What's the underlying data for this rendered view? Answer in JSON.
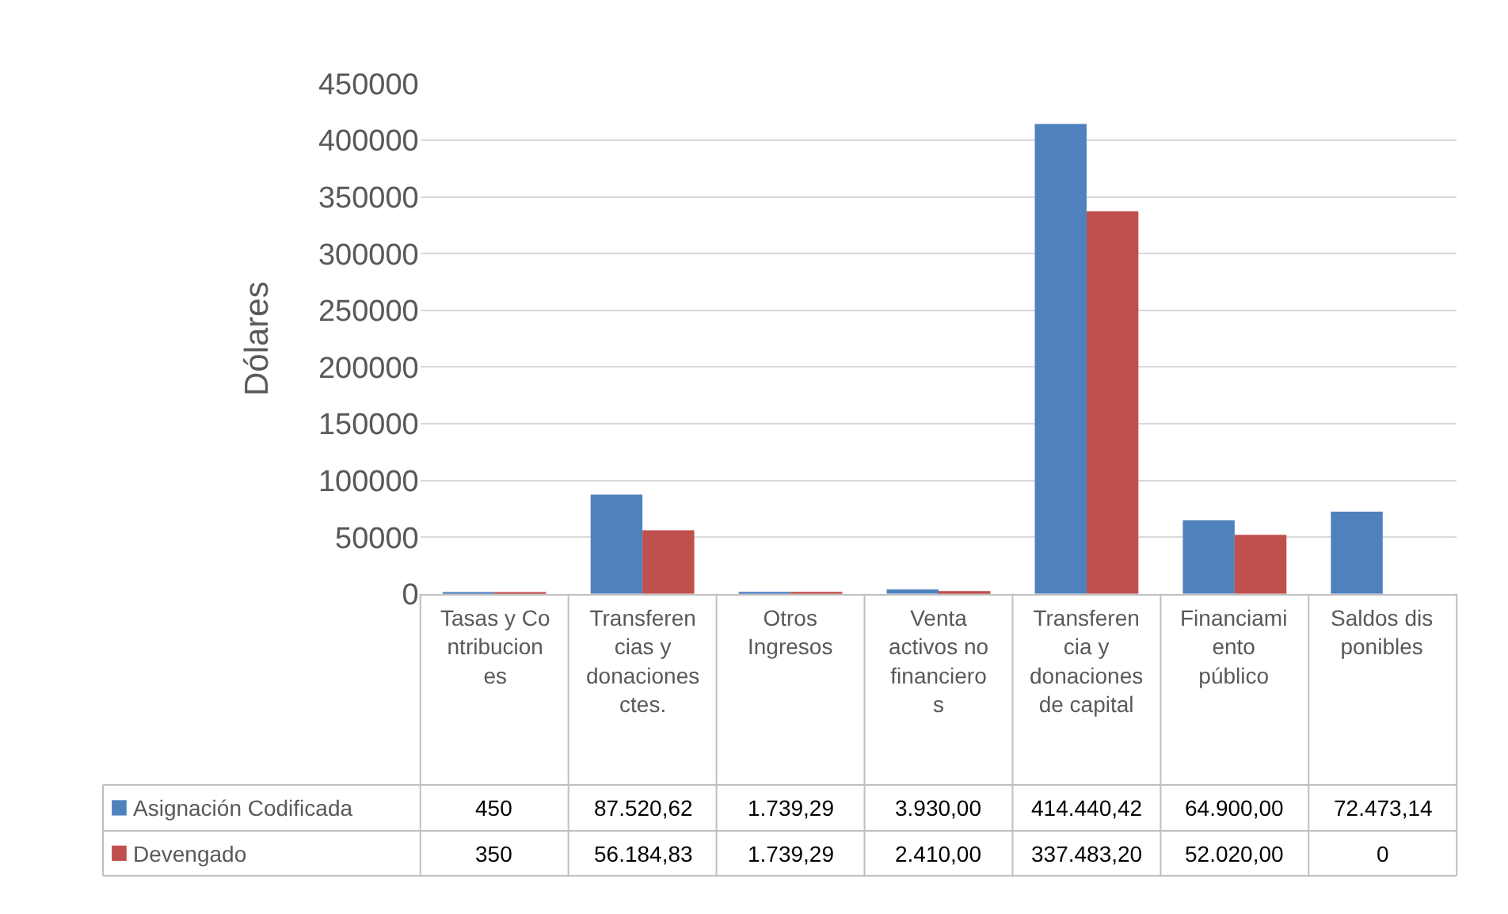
{
  "chart_data": {
    "type": "bar",
    "ylabel": "Dólares",
    "categories": [
      "Tasas y Contribuciones",
      "Transferencias y donaciones ctes.",
      "Otros Ingresos",
      "Venta activos no financieros",
      "Transferencia y donaciones de capital",
      "Financiamiento público",
      "Saldos disponibles"
    ],
    "series": [
      {
        "name": "Asignación Codificada",
        "color": "#4f81bd",
        "values": [
          450,
          87520.62,
          1739.29,
          3930,
          414440.42,
          64900,
          72473.14
        ],
        "value_labels": [
          "450",
          "87.520,62",
          "1.739,29",
          "3.930,00",
          "414.440,42",
          "64.900,00",
          "72.473,14"
        ]
      },
      {
        "name": "Devengado",
        "color": "#c0504d",
        "values": [
          350,
          56184.83,
          1739.29,
          2410,
          337483.2,
          52020,
          0
        ],
        "value_labels": [
          "350",
          "56.184,83",
          "1.739,29",
          "2.410,00",
          "337.483,20",
          "52.020,00",
          "0"
        ]
      }
    ],
    "ylim": [
      0,
      450000
    ],
    "yticks": [
      0,
      50000,
      100000,
      150000,
      200000,
      250000,
      300000,
      350000,
      400000,
      450000
    ],
    "grid": "y",
    "legend": "bottom left"
  }
}
